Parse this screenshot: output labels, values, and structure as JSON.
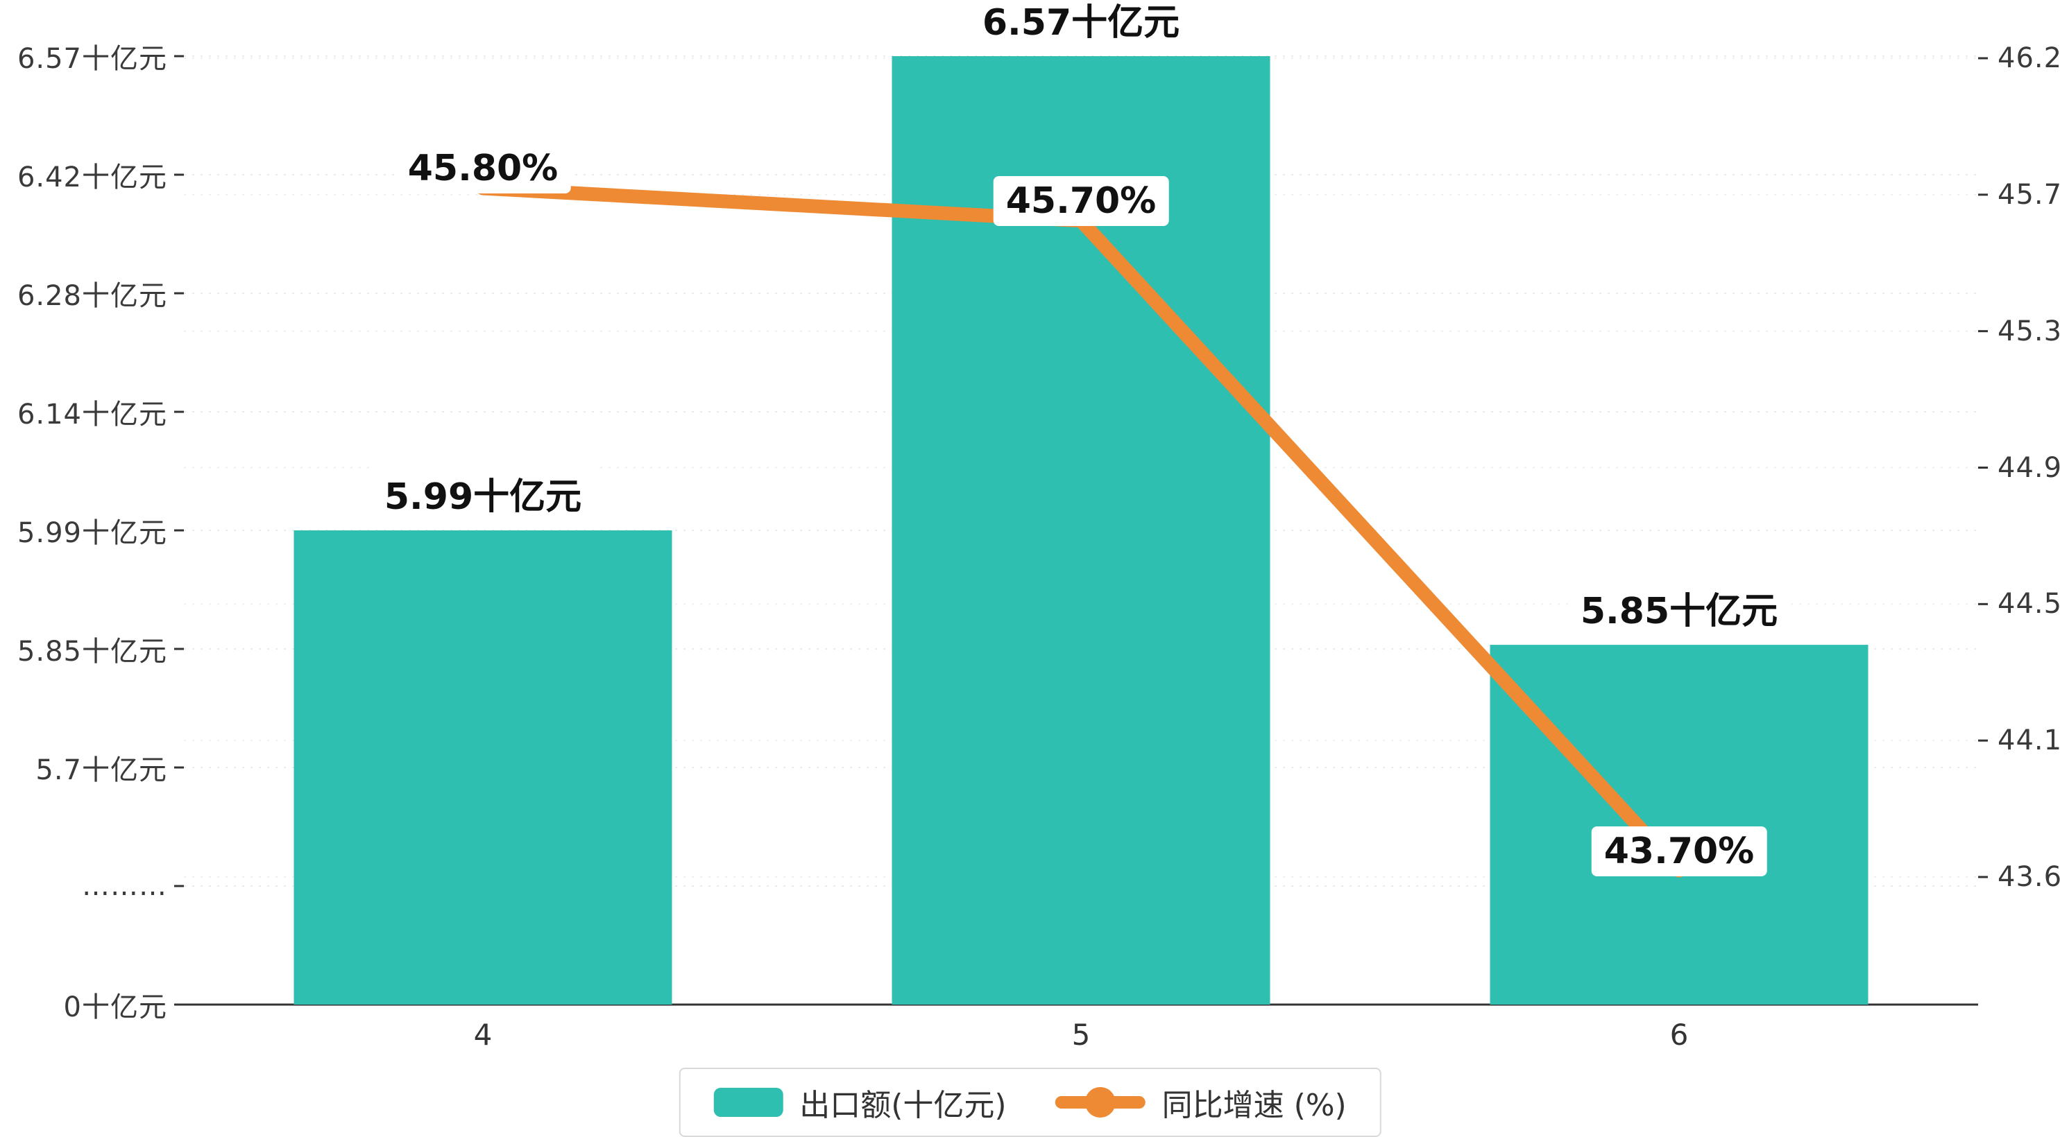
{
  "chart_data": {
    "type": "bar",
    "combo_types": [
      "bar",
      "line"
    ],
    "title": "",
    "categories": [
      "4",
      "5",
      "6"
    ],
    "series": [
      {
        "name": "出口额(十亿元)",
        "type": "bar",
        "axis": "left",
        "color": "#2FBFB1",
        "values": [
          5.99,
          6.57,
          5.85
        ],
        "labels": [
          "5.99十亿元",
          "6.57十亿元",
          "5.85十亿元"
        ]
      },
      {
        "name": "同比增速 (%)",
        "type": "line",
        "axis": "right",
        "color": "#EE8A34",
        "values": [
          45.8,
          45.7,
          43.7
        ],
        "labels": [
          "45.80%",
          "45.70%",
          "43.70%"
        ]
      }
    ],
    "left_axis": {
      "tick_labels": [
        "6.57十亿元",
        "6.42十亿元",
        "6.28十亿元",
        "6.14十亿元",
        "5.99十亿元",
        "5.85十亿元",
        "5.7十亿元",
        "………",
        "0十亿元"
      ],
      "tick_values": [
        6.57,
        6.42,
        6.28,
        6.14,
        5.99,
        5.85,
        5.7,
        null,
        0
      ],
      "broken_axis": true
    },
    "right_axis": {
      "tick_labels": [
        "46.20",
        "45.78",
        "45.36",
        "44.94",
        "44.52",
        "44.10",
        "43.68"
      ],
      "range": [
        43.68,
        46.2
      ]
    },
    "grid": true,
    "legend_position": "bottom"
  }
}
